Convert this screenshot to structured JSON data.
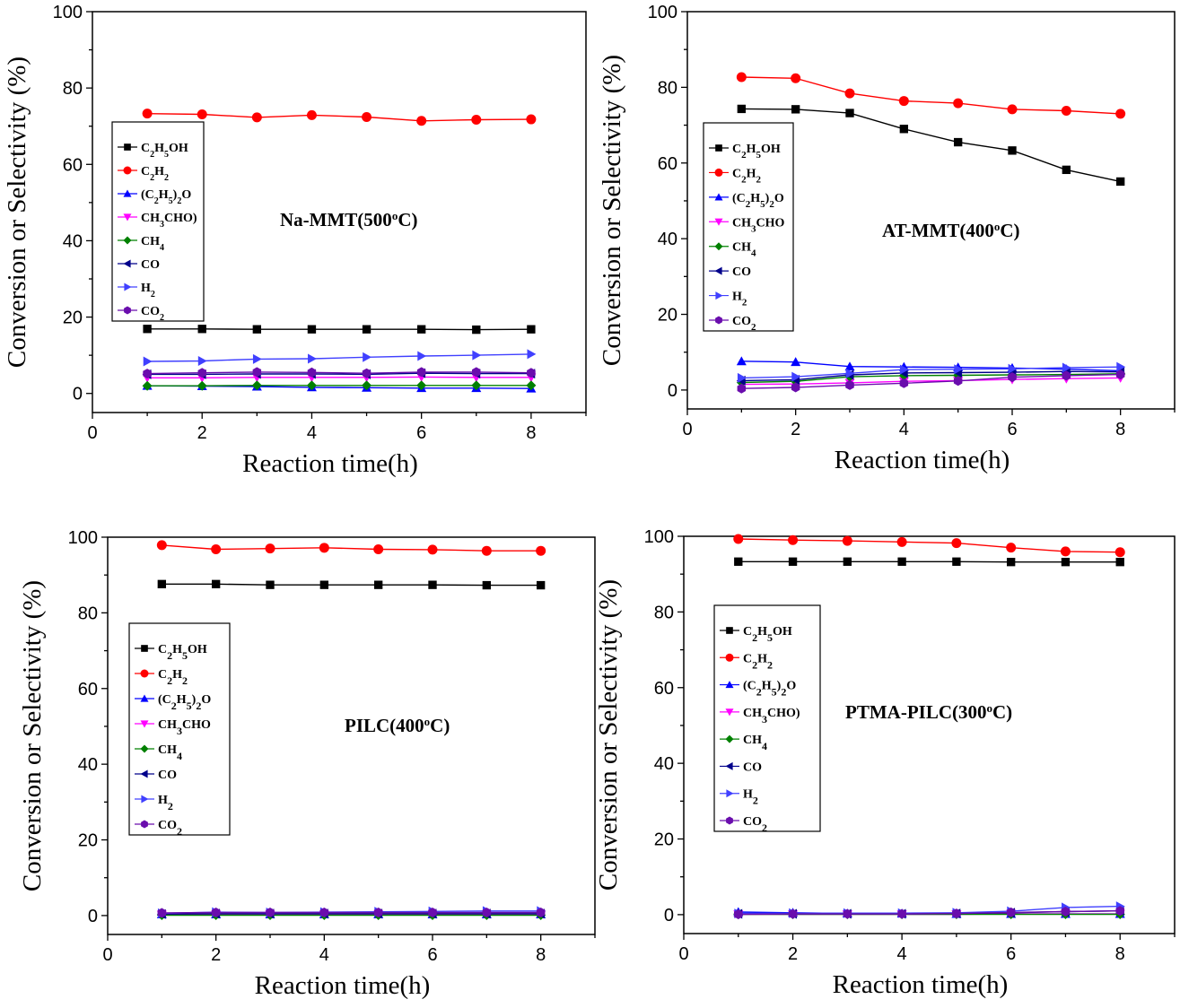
{
  "colors": {
    "C2H5OH": "#000000",
    "C2H2": "#ff0000",
    "C2H5_2O": "#0000ff",
    "CH3CHO": "#ff00ff",
    "CH4": "#008000",
    "CO": "#00008b",
    "H2": "#4040ff",
    "CO2": "#6a0dad"
  },
  "chart_data": [
    {
      "type": "line",
      "title": "Na-MMT(500°C)",
      "xlabel": "Reaction time(h)",
      "ylabel": "Conversion or Selectivity (%)",
      "xlim": [
        0,
        9
      ],
      "ylim": [
        -5,
        100
      ],
      "x_ticks": [
        0,
        2,
        4,
        6,
        8
      ],
      "y_ticks": [
        0,
        20,
        40,
        60,
        80,
        100
      ],
      "legend_position": "left",
      "legend": [
        "C2H5OH",
        "C2H2",
        "(C2H5)2O",
        "CH3CHO)",
        "CH4",
        "CO",
        "H2",
        "CO2"
      ],
      "x": [
        1,
        2,
        3,
        4,
        5,
        6,
        7,
        8
      ],
      "series": [
        {
          "name": "C2H5OH",
          "key": "C2H5OH",
          "marker": "square",
          "values": [
            16.9,
            16.9,
            16.8,
            16.8,
            16.8,
            16.8,
            16.7,
            16.8
          ]
        },
        {
          "name": "C2H2",
          "key": "C2H2",
          "marker": "circle",
          "values": [
            73.3,
            73.1,
            72.3,
            72.9,
            72.4,
            71.4,
            71.7,
            71.8
          ]
        },
        {
          "name": "(C2H5)2O",
          "key": "C2H5_2O",
          "marker": "triangle-up",
          "values": [
            2.0,
            1.9,
            1.8,
            1.6,
            1.5,
            1.4,
            1.4,
            1.3
          ]
        },
        {
          "name": "CH3CHO",
          "key": "CH3CHO",
          "marker": "triangle-down",
          "values": [
            4.1,
            4.1,
            4.2,
            4.2,
            4.2,
            4.3,
            4.2,
            4.2
          ]
        },
        {
          "name": "CH4",
          "key": "CH4",
          "marker": "diamond",
          "values": [
            2.0,
            2.0,
            2.1,
            2.1,
            2.1,
            2.1,
            2.1,
            2.1
          ]
        },
        {
          "name": "CO",
          "key": "CO",
          "marker": "triangle-left",
          "values": [
            5.0,
            5.0,
            5.1,
            5.1,
            5.0,
            5.3,
            5.2,
            5.2
          ]
        },
        {
          "name": "H2",
          "key": "H2",
          "marker": "triangle-right",
          "values": [
            8.4,
            8.5,
            9.0,
            9.1,
            9.5,
            9.8,
            10.0,
            10.3
          ]
        },
        {
          "name": "CO2",
          "key": "CO2",
          "marker": "hexagon",
          "values": [
            5.2,
            5.4,
            5.6,
            5.5,
            5.3,
            5.6,
            5.6,
            5.4
          ]
        }
      ]
    },
    {
      "type": "line",
      "title": "AT-MMT(400°C)",
      "xlabel": "Reaction time(h)",
      "ylabel": "Conversion or Selectivity (%)",
      "xlim": [
        0,
        9
      ],
      "ylim": [
        -5,
        100
      ],
      "x_ticks": [
        0,
        2,
        4,
        6,
        8
      ],
      "y_ticks": [
        0,
        20,
        40,
        60,
        80,
        100
      ],
      "legend_position": "left",
      "legend": [
        "C2H5OH",
        "C2H2",
        "(C2H5)2O",
        "CH3CHO",
        "CH4",
        "CO",
        "H2",
        "CO2"
      ],
      "x": [
        1,
        2,
        3,
        4,
        5,
        6,
        7,
        8
      ],
      "series": [
        {
          "name": "C2H5OH",
          "key": "C2H5OH",
          "marker": "square",
          "values": [
            74.3,
            74.2,
            73.2,
            69.0,
            65.5,
            63.3,
            58.2,
            55.1
          ]
        },
        {
          "name": "C2H2",
          "key": "C2H2",
          "marker": "circle",
          "values": [
            82.7,
            82.4,
            78.4,
            76.4,
            75.8,
            74.2,
            73.8,
            73.0
          ]
        },
        {
          "name": "(C2H5)2O",
          "key": "C2H5_2O",
          "marker": "triangle-up",
          "values": [
            7.6,
            7.4,
            6.2,
            6.1,
            6.0,
            5.8,
            5.5,
            5.1
          ]
        },
        {
          "name": "CH3CHO",
          "key": "CH3CHO",
          "marker": "triangle-down",
          "values": [
            1.5,
            1.6,
            1.9,
            2.3,
            2.5,
            2.8,
            3.0,
            3.2
          ]
        },
        {
          "name": "CH4",
          "key": "CH4",
          "marker": "diamond",
          "values": [
            2.0,
            2.3,
            3.5,
            3.8,
            3.9,
            4.0,
            4.1,
            4.3
          ]
        },
        {
          "name": "CO",
          "key": "CO",
          "marker": "triangle-left",
          "values": [
            2.5,
            2.7,
            4.0,
            4.5,
            4.6,
            4.7,
            4.9,
            4.8
          ]
        },
        {
          "name": "H2",
          "key": "H2",
          "marker": "triangle-right",
          "values": [
            3.2,
            3.5,
            4.4,
            5.4,
            5.5,
            5.6,
            5.9,
            6.1
          ]
        },
        {
          "name": "CO2",
          "key": "CO2",
          "marker": "hexagon",
          "values": [
            0.4,
            0.7,
            1.3,
            1.8,
            2.4,
            3.4,
            3.8,
            4.1
          ]
        }
      ]
    },
    {
      "type": "line",
      "title": "PILC(400°C)",
      "xlabel": "Reaction time(h)",
      "ylabel": "Conversion or Selectivity (%)",
      "xlim": [
        0,
        9
      ],
      "ylim": [
        -5,
        100
      ],
      "x_ticks": [
        0,
        2,
        4,
        6,
        8
      ],
      "y_ticks": [
        0,
        20,
        40,
        60,
        80,
        100
      ],
      "legend_position": "left",
      "legend": [
        "C2H5OH",
        "C2H2",
        "(C2H5)2O",
        "CH3CHO",
        "CH4",
        "CO",
        "H2",
        "CO2"
      ],
      "x": [
        1,
        2,
        3,
        4,
        5,
        6,
        7,
        8
      ],
      "series": [
        {
          "name": "C2H5OH",
          "key": "C2H5OH",
          "marker": "square",
          "values": [
            87.6,
            87.6,
            87.4,
            87.4,
            87.4,
            87.4,
            87.3,
            87.3
          ]
        },
        {
          "name": "C2H2",
          "key": "C2H2",
          "marker": "circle",
          "values": [
            97.9,
            96.8,
            97.0,
            97.2,
            96.8,
            96.7,
            96.4,
            96.4
          ]
        },
        {
          "name": "(C2H5)2O",
          "key": "C2H5_2O",
          "marker": "triangle-up",
          "values": [
            0.3,
            0.3,
            0.3,
            0.3,
            0.3,
            0.3,
            0.3,
            0.3
          ]
        },
        {
          "name": "CH3CHO",
          "key": "CH3CHO",
          "marker": "triangle-down",
          "values": [
            0.2,
            0.2,
            0.2,
            0.2,
            0.2,
            0.2,
            0.2,
            0.2
          ]
        },
        {
          "name": "CH4",
          "key": "CH4",
          "marker": "diamond",
          "values": [
            0.1,
            0.1,
            0.1,
            0.1,
            0.1,
            0.1,
            0.1,
            0.1
          ]
        },
        {
          "name": "CO",
          "key": "CO",
          "marker": "triangle-left",
          "values": [
            0.4,
            0.5,
            0.5,
            0.5,
            0.5,
            0.5,
            0.5,
            0.5
          ]
        },
        {
          "name": "H2",
          "key": "H2",
          "marker": "triangle-right",
          "values": [
            0.6,
            0.9,
            0.8,
            0.9,
            1.0,
            1.1,
            1.2,
            1.2
          ]
        },
        {
          "name": "CO2",
          "key": "CO2",
          "marker": "hexagon",
          "values": [
            0.7,
            0.8,
            0.8,
            0.8,
            0.8,
            0.8,
            0.8,
            0.8
          ]
        }
      ]
    },
    {
      "type": "line",
      "title": "PTMA-PILC(300°C)",
      "xlabel": "Reaction time(h)",
      "ylabel": "Conversion or Selectivity (%)",
      "xlim": [
        0,
        9
      ],
      "ylim": [
        -5,
        100
      ],
      "x_ticks": [
        0,
        2,
        4,
        6,
        8
      ],
      "y_ticks": [
        0,
        20,
        40,
        60,
        80,
        100
      ],
      "legend_position": "left",
      "legend": [
        "C2H5OH",
        "C2H2",
        "(C2H5)2O",
        "CH3CHO)",
        "CH4",
        "CO",
        "H2",
        "CO2"
      ],
      "x": [
        1,
        2,
        3,
        4,
        5,
        6,
        7,
        8
      ],
      "series": [
        {
          "name": "C2H5OH",
          "key": "C2H5OH",
          "marker": "square",
          "values": [
            93.3,
            93.3,
            93.3,
            93.3,
            93.3,
            93.2,
            93.2,
            93.2
          ]
        },
        {
          "name": "C2H2",
          "key": "C2H2",
          "marker": "circle",
          "values": [
            99.3,
            99.0,
            98.8,
            98.5,
            98.2,
            97.0,
            96.0,
            95.8
          ]
        },
        {
          "name": "(C2H5)2O",
          "key": "C2H5_2O",
          "marker": "triangle-up",
          "values": [
            0.7,
            0.5,
            0.3,
            0.3,
            0.2,
            0.2,
            0.2,
            0.2
          ]
        },
        {
          "name": "CH3CHO",
          "key": "CH3CHO",
          "marker": "triangle-down",
          "values": [
            0.1,
            0.1,
            0.1,
            0.1,
            0.1,
            0.2,
            0.2,
            0.2
          ]
        },
        {
          "name": "CH4",
          "key": "CH4",
          "marker": "diamond",
          "values": [
            0.1,
            0.1,
            0.1,
            0.1,
            0.1,
            0.1,
            0.1,
            0.1
          ]
        },
        {
          "name": "CO",
          "key": "CO",
          "marker": "triangle-left",
          "values": [
            0.2,
            0.2,
            0.2,
            0.2,
            0.3,
            0.5,
            0.8,
            1.0
          ]
        },
        {
          "name": "H2",
          "key": "H2",
          "marker": "triangle-right",
          "values": [
            0.3,
            0.4,
            0.4,
            0.4,
            0.5,
            0.9,
            1.9,
            2.2
          ]
        },
        {
          "name": "CO2",
          "key": "CO2",
          "marker": "hexagon",
          "values": [
            0.1,
            0.2,
            0.2,
            0.2,
            0.3,
            0.6,
            0.8,
            1.0
          ]
        }
      ]
    }
  ]
}
